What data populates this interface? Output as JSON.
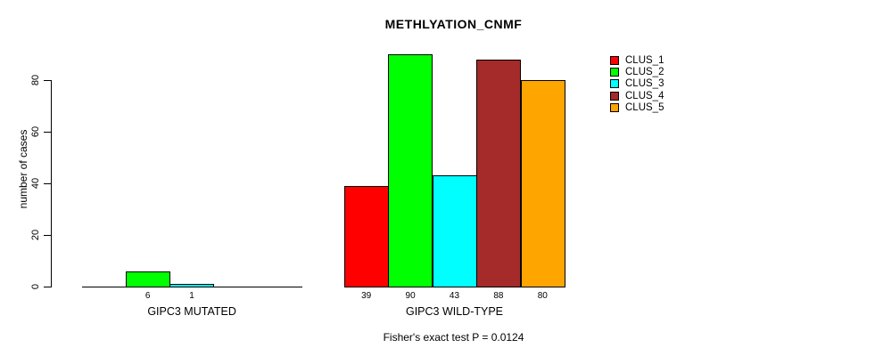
{
  "chart_data": {
    "type": "bar",
    "title": "METHLYATION_CNMF",
    "ylabel": "number of cases",
    "xlabel": "",
    "footer": "Fisher's exact test P = 0.0124",
    "categories": [
      "GIPC3 MUTATED",
      "GIPC3 WILD-TYPE"
    ],
    "series": [
      {
        "name": "CLUS_1",
        "color": "#FF0000",
        "values": [
          0,
          39
        ]
      },
      {
        "name": "CLUS_2",
        "color": "#00FF00",
        "values": [
          6,
          90
        ]
      },
      {
        "name": "CLUS_3",
        "color": "#00FFFF",
        "values": [
          1,
          43
        ]
      },
      {
        "name": "CLUS_4",
        "color": "#A52A2A",
        "values": [
          0,
          88
        ]
      },
      {
        "name": "CLUS_5",
        "color": "#FFA500",
        "values": [
          0,
          80
        ]
      }
    ],
    "bar_value_labels_shown": [
      "6",
      "1",
      "39",
      "90",
      "43",
      "88",
      "80"
    ],
    "yticks": [
      0,
      20,
      40,
      60,
      80
    ],
    "ylim": [
      0,
      90
    ],
    "grid": false,
    "legend_position": "right-outside",
    "background_color": "#FFFFFF",
    "axis_color": "#000000",
    "bar_outline_color": "#000000"
  }
}
